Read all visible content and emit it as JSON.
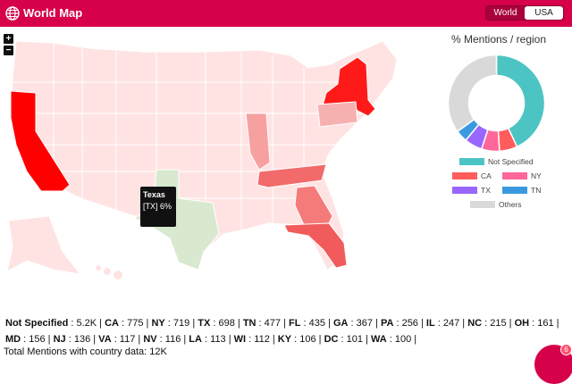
{
  "header": {
    "title": "World Map",
    "toggle_options": [
      "World",
      "USA"
    ],
    "selected": "USA",
    "accent_color": "#d6004b"
  },
  "map": {
    "zoom_in_label": "+",
    "zoom_out_label": "−",
    "tooltip": {
      "state": "Texas",
      "detail": "[TX] 6%"
    },
    "highlight_colors": {
      "CA": "#ff0000",
      "NY": "#ff1a1a",
      "TX": "#d8e9cf",
      "TN": "#f26a6a",
      "FL": "#f25b5b",
      "GA": "#f57a7a",
      "default": "#ffdede"
    }
  },
  "donut": {
    "title": "% Mentions / region",
    "segments": [
      {
        "label": "Not Specified",
        "color": "#4dc4c4",
        "value": 43
      },
      {
        "label": "CA",
        "color": "#ff5c5c",
        "value": 6
      },
      {
        "label": "NY",
        "color": "#ff6699",
        "value": 6
      },
      {
        "label": "TX",
        "color": "#9966ff",
        "value": 6
      },
      {
        "label": "TN",
        "color": "#3a9ae0",
        "value": 4
      },
      {
        "label": "Others",
        "color": "#d9d9d9",
        "value": 35
      }
    ]
  },
  "stats": {
    "row1": [
      {
        "k": "Not Specified",
        "v": "5.2K"
      },
      {
        "k": "CA",
        "v": "775"
      },
      {
        "k": "NY",
        "v": "719"
      },
      {
        "k": "TX",
        "v": "698"
      },
      {
        "k": "TN",
        "v": "477"
      },
      {
        "k": "FL",
        "v": "435"
      },
      {
        "k": "GA",
        "v": "367"
      },
      {
        "k": "PA",
        "v": "256"
      },
      {
        "k": "IL",
        "v": "247"
      },
      {
        "k": "NC",
        "v": "215"
      },
      {
        "k": "OH",
        "v": "161"
      }
    ],
    "row2": [
      {
        "k": "MD",
        "v": "156"
      },
      {
        "k": "NJ",
        "v": "136"
      },
      {
        "k": "VA",
        "v": "117"
      },
      {
        "k": "NV",
        "v": "116"
      },
      {
        "k": "LA",
        "v": "113"
      },
      {
        "k": "WI",
        "v": "112"
      },
      {
        "k": "KY",
        "v": "106"
      },
      {
        "k": "DC",
        "v": "101"
      },
      {
        "k": "WA",
        "v": "100"
      }
    ],
    "total": "Total Mentions with country data: 12K"
  },
  "chat": {
    "badge": "6"
  }
}
